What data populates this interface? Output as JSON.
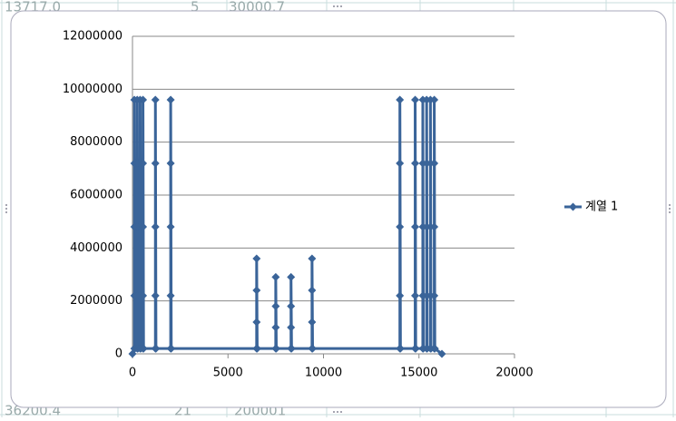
{
  "sheet_cells": {
    "top": [
      "13717.0",
      "5",
      "30000.7"
    ],
    "bottom": [
      "36200.4",
      "21",
      "200001"
    ]
  },
  "chart_data": {
    "type": "scatter-line",
    "x": [
      0,
      100,
      100,
      100,
      100,
      100,
      130,
      250,
      250,
      250,
      250,
      250,
      280,
      400,
      400,
      400,
      400,
      400,
      430,
      550,
      550,
      550,
      550,
      550,
      580,
      1200,
      1200,
      1200,
      1200,
      1200,
      1230,
      2000,
      2000,
      2000,
      2000,
      2000,
      2030,
      6500,
      6500,
      6500,
      6500,
      6530,
      7500,
      7500,
      7500,
      7500,
      7530,
      8300,
      8300,
      8300,
      8300,
      8330,
      9400,
      9400,
      9400,
      9400,
      9430,
      14000,
      14000,
      14000,
      14000,
      14000,
      14030,
      14800,
      14800,
      14800,
      14800,
      14800,
      14830,
      15200,
      15200,
      15200,
      15200,
      15200,
      15230,
      15400,
      15400,
      15400,
      15400,
      15400,
      15430,
      15600,
      15600,
      15600,
      15600,
      15600,
      15630,
      15800,
      15800,
      15800,
      15800,
      15800,
      15830,
      16200
    ],
    "series": [
      {
        "name": "계열 1",
        "color": "#3a6499",
        "values": [
          0,
          200000,
          2200000,
          4800000,
          7200000,
          9600000,
          200000,
          200000,
          2200000,
          4800000,
          7200000,
          9600000,
          200000,
          200000,
          2200000,
          4800000,
          7200000,
          9600000,
          200000,
          200000,
          2200000,
          4800000,
          7200000,
          9600000,
          200000,
          200000,
          2200000,
          4800000,
          7200000,
          9600000,
          200000,
          200000,
          2200000,
          4800000,
          7200000,
          9600000,
          200000,
          200000,
          1200000,
          2400000,
          3600000,
          200000,
          200000,
          1000000,
          1800000,
          2900000,
          200000,
          200000,
          1000000,
          1800000,
          2900000,
          200000,
          200000,
          1200000,
          2400000,
          3600000,
          200000,
          200000,
          2200000,
          4800000,
          7200000,
          9600000,
          200000,
          200000,
          2200000,
          4800000,
          7200000,
          9600000,
          200000,
          200000,
          2200000,
          4800000,
          7200000,
          9600000,
          200000,
          200000,
          2200000,
          4800000,
          7200000,
          9600000,
          200000,
          200000,
          2200000,
          4800000,
          7200000,
          9600000,
          200000,
          200000,
          2200000,
          4800000,
          7200000,
          9600000,
          200000,
          0
        ]
      }
    ],
    "xlim": [
      0,
      20000
    ],
    "xticks": [
      0,
      5000,
      10000,
      15000,
      20000
    ],
    "ylim": [
      0,
      12000000
    ],
    "yticks": [
      0,
      2000000,
      4000000,
      6000000,
      8000000,
      10000000,
      12000000
    ],
    "grid": true,
    "legend": "right"
  }
}
